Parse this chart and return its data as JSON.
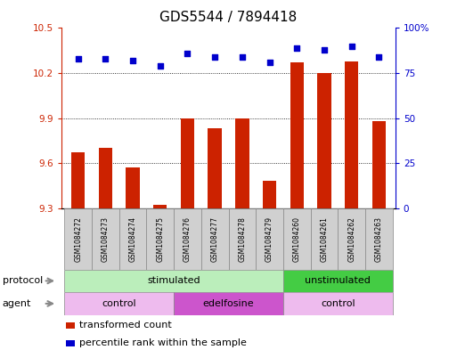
{
  "title": "GDS5544 / 7894418",
  "samples": [
    "GSM1084272",
    "GSM1084273",
    "GSM1084274",
    "GSM1084275",
    "GSM1084276",
    "GSM1084277",
    "GSM1084278",
    "GSM1084279",
    "GSM1084260",
    "GSM1084261",
    "GSM1084262",
    "GSM1084263"
  ],
  "transformed_count": [
    9.67,
    9.7,
    9.57,
    9.32,
    9.9,
    9.83,
    9.9,
    9.48,
    10.27,
    10.2,
    10.28,
    9.88
  ],
  "percentile_rank": [
    83,
    83,
    82,
    79,
    86,
    84,
    84,
    81,
    89,
    88,
    90,
    84
  ],
  "ylim_left": [
    9.3,
    10.5
  ],
  "ylim_right": [
    0,
    100
  ],
  "yticks_left": [
    9.3,
    9.6,
    9.9,
    10.2,
    10.5
  ],
  "yticks_right": [
    0,
    25,
    50,
    75,
    100
  ],
  "bar_color": "#cc2200",
  "dot_color": "#0000cc",
  "protocol_groups": [
    {
      "label": "stimulated",
      "start": 0,
      "end": 7,
      "color": "#bbeebb"
    },
    {
      "label": "unstimulated",
      "start": 8,
      "end": 11,
      "color": "#44cc44"
    }
  ],
  "agent_groups": [
    {
      "label": "control",
      "start": 0,
      "end": 3,
      "color": "#eebbee"
    },
    {
      "label": "edelfosine",
      "start": 4,
      "end": 7,
      "color": "#cc55cc"
    },
    {
      "label": "control",
      "start": 8,
      "end": 11,
      "color": "#eebbee"
    }
  ],
  "sample_cell_color": "#d0d0d0",
  "legend_bar_label": "transformed count",
  "legend_dot_label": "percentile rank within the sample",
  "protocol_label": "protocol",
  "agent_label": "agent",
  "title_fontsize": 11,
  "tick_fontsize": 7.5,
  "sample_fontsize": 5.5,
  "row_fontsize": 8,
  "legend_fontsize": 8
}
